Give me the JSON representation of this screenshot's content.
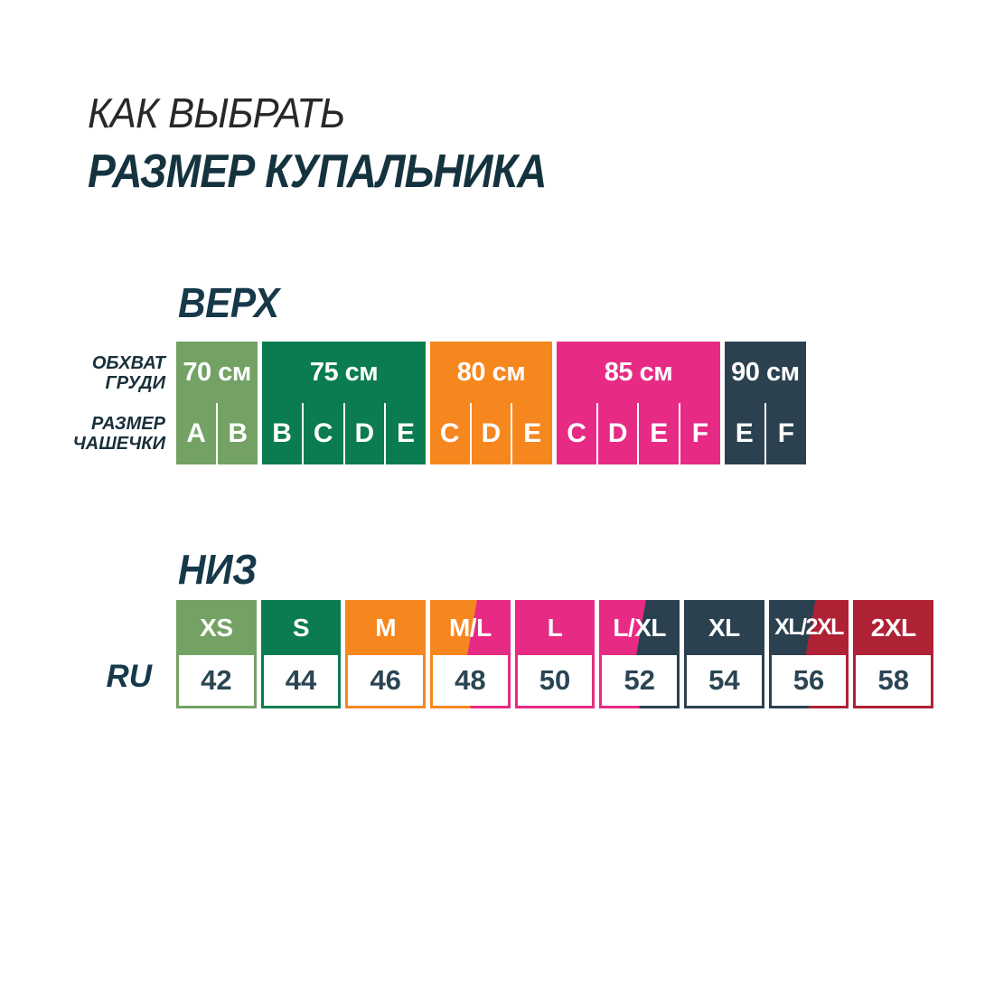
{
  "page_title": {
    "line1": "КАК ВЫБРАТЬ",
    "line2": "РАЗМЕР КУПАЛЬНИКА"
  },
  "colors": {
    "sage": "#73A264",
    "green": "#0B7C50",
    "orange": "#F6871F",
    "pink": "#E72B84",
    "navy": "#2B4150",
    "red": "#AF2135",
    "heading_teal": "#16394A",
    "title_dark": "#26282B",
    "value_navy": "#2B4553",
    "background": "#FFFFFF"
  },
  "chart_data": [
    {
      "type": "table",
      "title": "ВЕРХ",
      "row_labels": {
        "chest": "ОБХВАТ ГРУДИ",
        "cup": "РАЗМЕР ЧАШЕЧКИ"
      },
      "groups": [
        {
          "chest": "70 см",
          "color_name": "sage",
          "cups": [
            "A",
            "B"
          ]
        },
        {
          "chest": "75 см",
          "color_name": "green",
          "cups": [
            "B",
            "C",
            "D",
            "E"
          ]
        },
        {
          "chest": "80 см",
          "color_name": "orange",
          "cups": [
            "C",
            "D",
            "E"
          ]
        },
        {
          "chest": "85 см",
          "color_name": "pink",
          "cups": [
            "C",
            "D",
            "E",
            "F"
          ]
        },
        {
          "chest": "90 см",
          "color_name": "navy",
          "cups": [
            "E",
            "F"
          ]
        }
      ]
    },
    {
      "type": "table",
      "title": "НИЗ",
      "row_labels": {
        "ru": "RU"
      },
      "columns": [
        {
          "size": "XS",
          "ru": "42",
          "color_names": [
            "sage"
          ]
        },
        {
          "size": "S",
          "ru": "44",
          "color_names": [
            "green"
          ]
        },
        {
          "size": "M",
          "ru": "46",
          "color_names": [
            "orange"
          ]
        },
        {
          "size": "M/L",
          "ru": "48",
          "color_names": [
            "orange",
            "pink"
          ]
        },
        {
          "size": "L",
          "ru": "50",
          "color_names": [
            "pink"
          ]
        },
        {
          "size": "L/XL",
          "ru": "52",
          "color_names": [
            "pink",
            "navy"
          ]
        },
        {
          "size": "XL",
          "ru": "54",
          "color_names": [
            "navy"
          ]
        },
        {
          "size": "XL/2XL",
          "ru": "56",
          "color_names": [
            "navy",
            "red"
          ]
        },
        {
          "size": "2XL",
          "ru": "58",
          "color_names": [
            "red"
          ]
        }
      ]
    }
  ]
}
